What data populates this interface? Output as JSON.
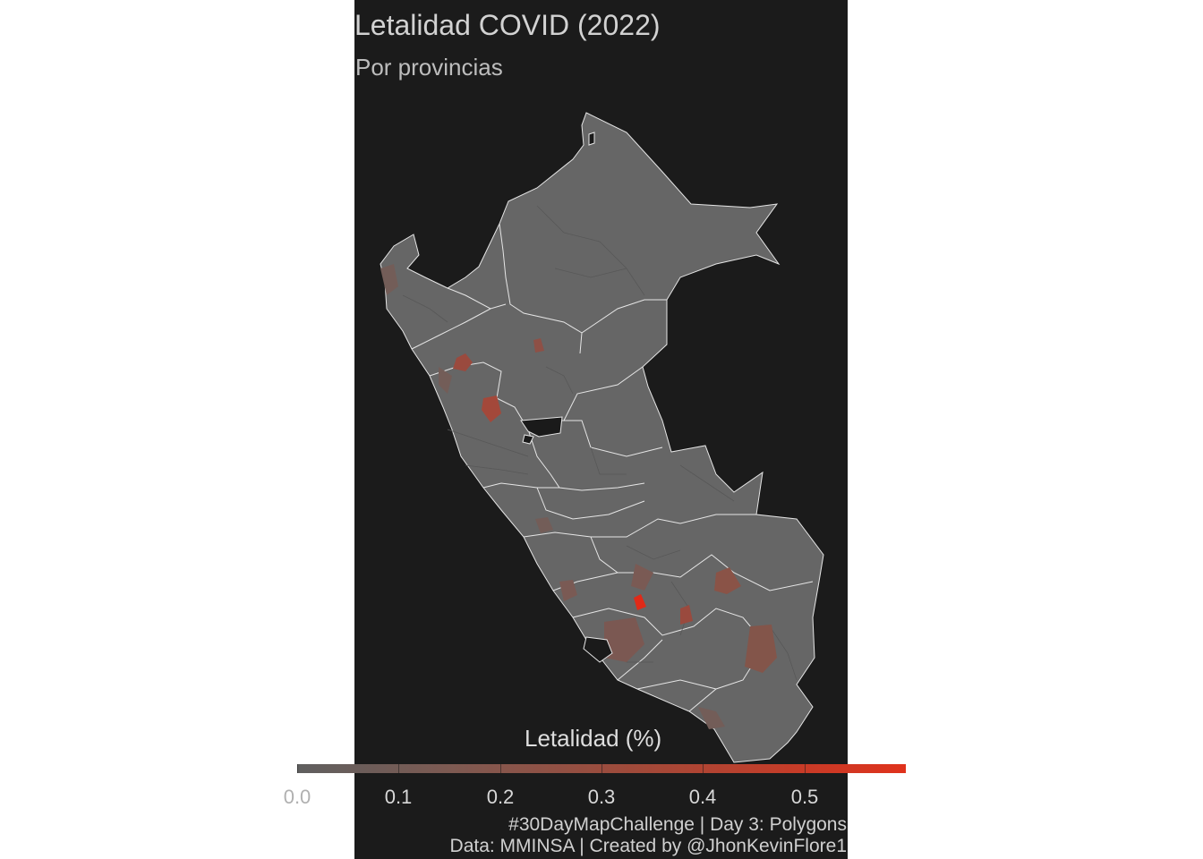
{
  "title": "Letalidad COVID (2022)",
  "subtitle": "Por provincias",
  "legend": {
    "title": "Letalidad (%)",
    "ticks": [
      "0.0",
      "0.1",
      "0.2",
      "0.3",
      "0.4",
      "0.5"
    ],
    "range": [
      0.0,
      0.6
    ],
    "color_low": "#5f5f5f",
    "color_high": "#e0321c"
  },
  "caption": {
    "line1": "#30DayMapChallenge | Day 3: Polygons",
    "line2": "Data: MMINSA | Created by @JhonKevinFlore1"
  },
  "colors": {
    "panel_background": "#1b1b1b",
    "province_base": "#666666",
    "province_border": "#e6e6e6",
    "no_data": "#1a1a1a"
  }
}
